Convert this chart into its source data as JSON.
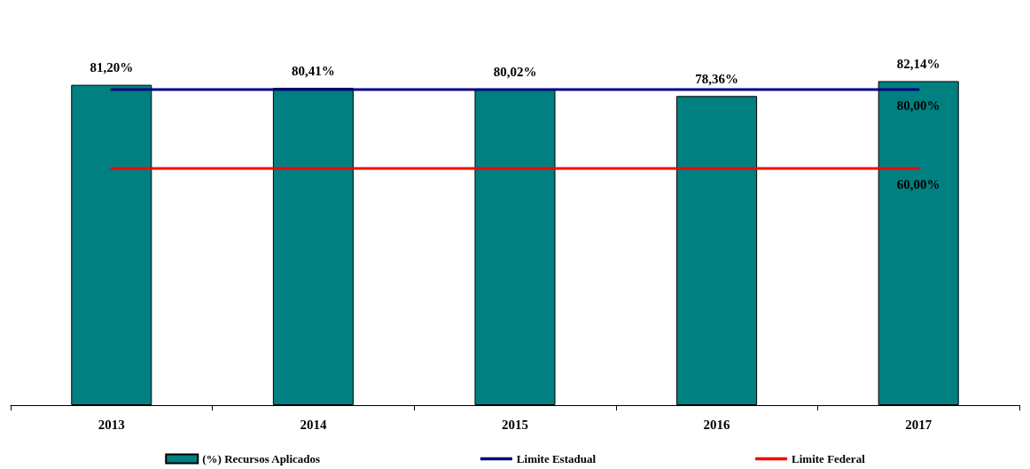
{
  "chart_data": {
    "type": "bar",
    "categories": [
      "2013",
      "2014",
      "2015",
      "2016",
      "2017"
    ],
    "series": [
      {
        "name": "(%) Recursos Aplicados",
        "color": "#008080",
        "values": [
          81.2,
          80.41,
          80.02,
          78.36,
          82.14
        ],
        "value_labels": [
          "81,20%",
          "80,41%",
          "80,02%",
          "78,36%",
          "82,14%"
        ]
      },
      {
        "name": "Limite Estadual",
        "type": "line",
        "color": "#000080",
        "values": [
          80,
          80,
          80,
          80,
          80
        ],
        "value_labels": [
          null,
          null,
          null,
          null,
          "80,00%"
        ]
      },
      {
        "name": "Limite Federal",
        "type": "line",
        "color": "#ff0000",
        "values": [
          60,
          60,
          60,
          60,
          60
        ],
        "value_labels": [
          null,
          null,
          null,
          null,
          "60,00%"
        ]
      }
    ],
    "legend": "bottom",
    "grid": false,
    "marker": "none",
    "tick_labels": "x"
  }
}
